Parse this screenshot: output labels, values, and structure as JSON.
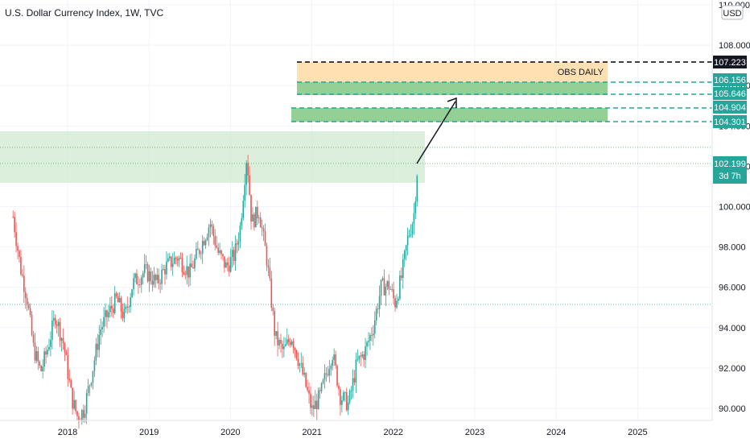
{
  "header": {
    "title": "U.S. Dollar Currency Index, 1W, TVC",
    "currency_button": "USD"
  },
  "chart_data": {
    "type": "candlestick",
    "x_ticks": [
      "2018",
      "2019",
      "2020",
      "2021",
      "2022",
      "2023",
      "2024",
      "2025"
    ],
    "y_ticks": [
      "110.000",
      "108.000",
      "106.000",
      "104.000",
      "102.000",
      "100.000",
      "98.000",
      "96.000",
      "94.000",
      "92.000",
      "90.000"
    ],
    "ylim": [
      89.5,
      110.0
    ],
    "grid": true,
    "colors": {
      "up": "#26a69a",
      "down": "#ef5350"
    },
    "price_levels": {
      "obs_top": "107.223",
      "obs_bottom": "106.156",
      "zone2_top": "105.646",
      "zone3_top": "104.904",
      "zone3_bottom": "104.301",
      "last_price": "102.199",
      "countdown": "3d 7h"
    },
    "annotations": {
      "obs_label": "OBS DAILY"
    },
    "weekly_path": [
      [
        2017.33,
        99.5
      ],
      [
        2017.42,
        97.0
      ],
      [
        2017.5,
        95.5
      ],
      [
        2017.58,
        93.0
      ],
      [
        2017.67,
        91.8
      ],
      [
        2017.75,
        92.9
      ],
      [
        2017.85,
        94.6
      ],
      [
        2017.95,
        93.2
      ],
      [
        2018.05,
        90.5
      ],
      [
        2018.12,
        89.6
      ],
      [
        2018.2,
        89.9
      ],
      [
        2018.3,
        91.8
      ],
      [
        2018.4,
        93.9
      ],
      [
        2018.5,
        94.7
      ],
      [
        2018.6,
        95.4
      ],
      [
        2018.7,
        94.5
      ],
      [
        2018.8,
        96.2
      ],
      [
        2018.95,
        96.8
      ],
      [
        2019.1,
        96.2
      ],
      [
        2019.2,
        97.0
      ],
      [
        2019.35,
        97.5
      ],
      [
        2019.5,
        96.7
      ],
      [
        2019.65,
        98.2
      ],
      [
        2019.75,
        99.2
      ],
      [
        2019.85,
        97.7
      ],
      [
        2019.95,
        97.0
      ],
      [
        2020.05,
        97.6
      ],
      [
        2020.12,
        99.0
      ],
      [
        2020.2,
        102.6
      ],
      [
        2020.26,
        99.2
      ],
      [
        2020.35,
        99.8
      ],
      [
        2020.45,
        97.3
      ],
      [
        2020.55,
        93.5
      ],
      [
        2020.65,
        92.8
      ],
      [
        2020.75,
        93.6
      ],
      [
        2020.9,
        91.5
      ],
      [
        2021.0,
        89.9
      ],
      [
        2021.1,
        90.6
      ],
      [
        2021.25,
        92.8
      ],
      [
        2021.35,
        90.6
      ],
      [
        2021.45,
        90.2
      ],
      [
        2021.55,
        92.2
      ],
      [
        2021.65,
        92.8
      ],
      [
        2021.75,
        94.0
      ],
      [
        2021.85,
        96.0
      ],
      [
        2021.95,
        96.1
      ],
      [
        2022.02,
        95.2
      ],
      [
        2022.1,
        96.5
      ],
      [
        2022.18,
        98.5
      ],
      [
        2022.25,
        99.5
      ],
      [
        2022.3,
        102.2
      ]
    ]
  }
}
